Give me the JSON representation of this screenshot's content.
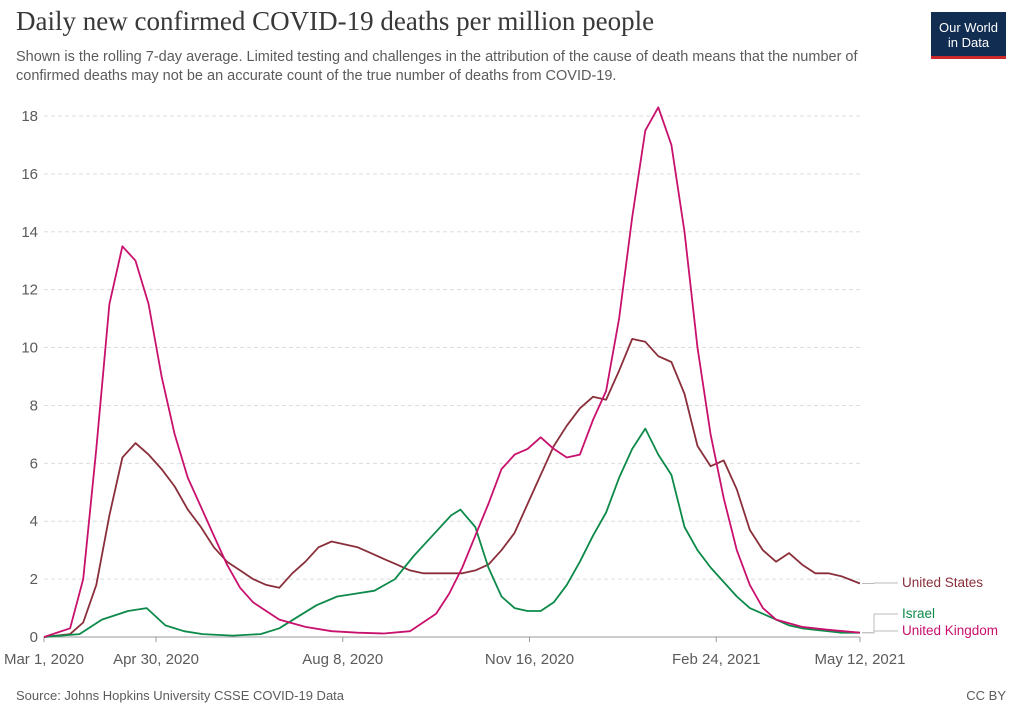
{
  "header": {
    "title": "Daily new confirmed COVID-19 deaths per million people",
    "subtitle": "Shown is the rolling 7-day average. Limited testing and challenges in the attribution of the cause of death means that the number of confirmed deaths may not be an accurate count of the true number of deaths from COVID-19."
  },
  "logo": {
    "line1": "Our World",
    "line2": "in Data"
  },
  "footer": {
    "source": "Source: Johns Hopkins University CSSE COVID-19 Data",
    "license": "CC BY"
  },
  "colors": {
    "united_states": "#8a2f3a",
    "israel": "#0d8a4a",
    "united_kingdom": "#c8106d",
    "grid": "#dddddd",
    "axis_text": "#5b5b5b",
    "logo_bg": "#112d52",
    "logo_accent": "#cc2a2a"
  },
  "chart_data": {
    "type": "line",
    "title": "Daily new confirmed COVID-19 deaths per million people",
    "xlabel": "",
    "ylabel": "",
    "x_type": "date",
    "xlim": [
      "2020-03-01",
      "2021-05-12"
    ],
    "ylim": [
      0,
      18
    ],
    "y_ticks": [
      0,
      2,
      4,
      6,
      8,
      10,
      12,
      14,
      16,
      18
    ],
    "y_tick_labels": [
      "0",
      "2",
      "4",
      "6",
      "8",
      "10",
      "12",
      "14",
      "16",
      "18"
    ],
    "x_ticks": [
      "2020-03-01",
      "2020-04-30",
      "2020-08-08",
      "2020-11-16",
      "2021-02-24",
      "2021-05-12"
    ],
    "x_tick_labels": [
      "Mar 1, 2020",
      "Apr 30, 2020",
      "Aug 8, 2020",
      "Nov 16, 2020",
      "Feb 24, 2021",
      "May 12, 2021"
    ],
    "grid": true,
    "legend": "right-end labels",
    "series": [
      {
        "name": "United States",
        "color": "#8a2f3a",
        "x": [
          "2020-03-01",
          "2020-03-15",
          "2020-03-22",
          "2020-03-29",
          "2020-04-05",
          "2020-04-12",
          "2020-04-19",
          "2020-04-26",
          "2020-05-03",
          "2020-05-10",
          "2020-05-17",
          "2020-05-24",
          "2020-05-31",
          "2020-06-07",
          "2020-06-14",
          "2020-06-21",
          "2020-06-28",
          "2020-07-05",
          "2020-07-12",
          "2020-07-19",
          "2020-07-26",
          "2020-08-02",
          "2020-08-09",
          "2020-08-16",
          "2020-08-23",
          "2020-08-30",
          "2020-09-06",
          "2020-09-13",
          "2020-09-20",
          "2020-09-27",
          "2020-10-04",
          "2020-10-11",
          "2020-10-18",
          "2020-10-25",
          "2020-11-01",
          "2020-11-08",
          "2020-11-15",
          "2020-11-22",
          "2020-11-29",
          "2020-12-06",
          "2020-12-13",
          "2020-12-20",
          "2020-12-27",
          "2021-01-03",
          "2021-01-10",
          "2021-01-17",
          "2021-01-24",
          "2021-01-31",
          "2021-02-07",
          "2021-02-14",
          "2021-02-21",
          "2021-02-28",
          "2021-03-07",
          "2021-03-14",
          "2021-03-21",
          "2021-03-28",
          "2021-04-04",
          "2021-04-11",
          "2021-04-18",
          "2021-04-25",
          "2021-05-02",
          "2021-05-12"
        ],
        "y": [
          0,
          0.1,
          0.5,
          1.8,
          4.2,
          6.2,
          6.7,
          6.3,
          5.8,
          5.2,
          4.4,
          3.8,
          3.1,
          2.6,
          2.3,
          2.0,
          1.8,
          1.7,
          2.2,
          2.6,
          3.1,
          3.3,
          3.2,
          3.1,
          2.9,
          2.7,
          2.5,
          2.3,
          2.2,
          2.2,
          2.2,
          2.2,
          2.3,
          2.5,
          3.0,
          3.6,
          4.6,
          5.6,
          6.6,
          7.3,
          7.9,
          8.3,
          8.2,
          9.2,
          10.3,
          10.2,
          9.7,
          9.5,
          8.4,
          6.6,
          5.9,
          6.1,
          5.1,
          3.7,
          3.0,
          2.6,
          2.9,
          2.5,
          2.2,
          2.2,
          2.1,
          1.85
        ]
      },
      {
        "name": "Israel",
        "color": "#0d8a4a",
        "x": [
          "2020-03-01",
          "2020-03-20",
          "2020-04-01",
          "2020-04-15",
          "2020-04-25",
          "2020-05-05",
          "2020-05-15",
          "2020-05-25",
          "2020-06-10",
          "2020-06-25",
          "2020-07-05",
          "2020-07-15",
          "2020-07-25",
          "2020-08-05",
          "2020-08-15",
          "2020-08-25",
          "2020-09-05",
          "2020-09-15",
          "2020-09-25",
          "2020-10-05",
          "2020-10-10",
          "2020-10-18",
          "2020-10-25",
          "2020-11-01",
          "2020-11-08",
          "2020-11-15",
          "2020-11-22",
          "2020-11-29",
          "2020-12-06",
          "2020-12-13",
          "2020-12-20",
          "2020-12-27",
          "2021-01-03",
          "2021-01-10",
          "2021-01-17",
          "2021-01-24",
          "2021-01-31",
          "2021-02-07",
          "2021-02-14",
          "2021-02-21",
          "2021-02-28",
          "2021-03-07",
          "2021-03-14",
          "2021-03-21",
          "2021-03-28",
          "2021-04-04",
          "2021-04-11",
          "2021-04-18",
          "2021-04-25",
          "2021-05-02",
          "2021-05-12"
        ],
        "y": [
          0,
          0.1,
          0.6,
          0.9,
          1.0,
          0.4,
          0.2,
          0.1,
          0.05,
          0.1,
          0.3,
          0.7,
          1.1,
          1.4,
          1.5,
          1.6,
          2.0,
          2.8,
          3.5,
          4.2,
          4.4,
          3.8,
          2.4,
          1.4,
          1.0,
          0.9,
          0.9,
          1.2,
          1.8,
          2.6,
          3.5,
          4.3,
          5.5,
          6.5,
          7.2,
          6.3,
          5.6,
          3.8,
          3.0,
          2.4,
          1.9,
          1.4,
          1.0,
          0.8,
          0.6,
          0.4,
          0.3,
          0.25,
          0.2,
          0.15,
          0.15
        ]
      },
      {
        "name": "United Kingdom",
        "color": "#c8106d",
        "x": [
          "2020-03-01",
          "2020-03-15",
          "2020-03-22",
          "2020-03-29",
          "2020-04-05",
          "2020-04-12",
          "2020-04-19",
          "2020-04-26",
          "2020-05-03",
          "2020-05-10",
          "2020-05-17",
          "2020-05-24",
          "2020-05-31",
          "2020-06-07",
          "2020-06-14",
          "2020-06-21",
          "2020-06-28",
          "2020-07-05",
          "2020-07-19",
          "2020-08-02",
          "2020-08-16",
          "2020-08-30",
          "2020-09-13",
          "2020-09-27",
          "2020-10-04",
          "2020-10-11",
          "2020-10-18",
          "2020-10-25",
          "2020-11-01",
          "2020-11-08",
          "2020-11-15",
          "2020-11-22",
          "2020-11-29",
          "2020-12-06",
          "2020-12-13",
          "2020-12-20",
          "2020-12-27",
          "2021-01-03",
          "2021-01-10",
          "2021-01-17",
          "2021-01-24",
          "2021-01-31",
          "2021-02-07",
          "2021-02-14",
          "2021-02-21",
          "2021-02-28",
          "2021-03-07",
          "2021-03-14",
          "2021-03-21",
          "2021-03-28",
          "2021-04-11",
          "2021-04-25",
          "2021-05-12"
        ],
        "y": [
          0,
          0.3,
          2.0,
          6.5,
          11.5,
          13.5,
          13.0,
          11.5,
          9.0,
          7.0,
          5.5,
          4.5,
          3.5,
          2.5,
          1.7,
          1.2,
          0.9,
          0.6,
          0.35,
          0.2,
          0.15,
          0.12,
          0.2,
          0.8,
          1.5,
          2.4,
          3.5,
          4.6,
          5.8,
          6.3,
          6.5,
          6.9,
          6.5,
          6.2,
          6.3,
          7.5,
          8.5,
          11.0,
          14.5,
          17.5,
          18.3,
          17.0,
          14.0,
          10.0,
          7.0,
          4.8,
          3.0,
          1.8,
          1.0,
          0.6,
          0.35,
          0.25,
          0.15
        ]
      }
    ]
  }
}
